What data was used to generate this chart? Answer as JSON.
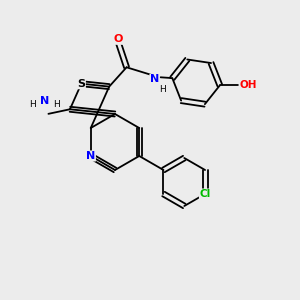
{
  "bg_color": "#ececec",
  "bond_color": "#000000",
  "atom_colors": {
    "N": "#0000ff",
    "S": "#000000",
    "O": "#ff0000",
    "Cl": "#00bb00",
    "C": "#000000",
    "H": "#000000"
  }
}
